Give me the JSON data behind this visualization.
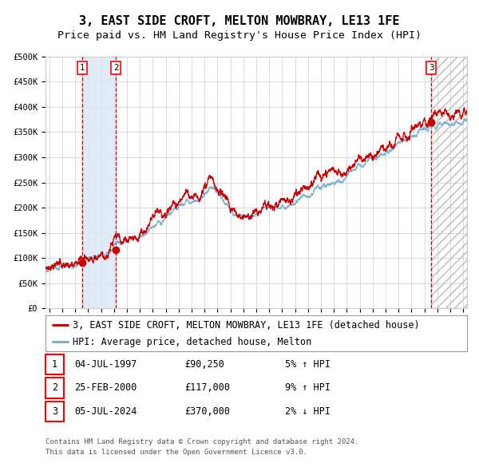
{
  "title": "3, EAST SIDE CROFT, MELTON MOWBRAY, LE13 1FE",
  "subtitle": "Price paid vs. HM Land Registry's House Price Index (HPI)",
  "legend_line1": "3, EAST SIDE CROFT, MELTON MOWBRAY, LE13 1FE (detached house)",
  "legend_line2": "HPI: Average price, detached house, Melton",
  "footer1": "Contains HM Land Registry data © Crown copyright and database right 2024.",
  "footer2": "This data is licensed under the Open Government Licence v3.0.",
  "transactions": [
    {
      "num": 1,
      "date": "04-JUL-1997",
      "price": "90,250",
      "price_raw": 90250,
      "pct": "5%",
      "dir": "↑",
      "year": 1997.54
    },
    {
      "num": 2,
      "date": "25-FEB-2000",
      "price": "117,000",
      "price_raw": 117000,
      "pct": "9%",
      "dir": "↑",
      "year": 2000.15
    },
    {
      "num": 3,
      "date": "05-JUL-2024",
      "price": "370,000",
      "price_raw": 370000,
      "pct": "2%",
      "dir": "↓",
      "year": 2024.54
    }
  ],
  "ylim": [
    0,
    500000
  ],
  "yticks": [
    0,
    50000,
    100000,
    150000,
    200000,
    250000,
    300000,
    350000,
    400000,
    450000,
    500000
  ],
  "ytick_labels": [
    "£0",
    "£50K",
    "£100K",
    "£150K",
    "£200K",
    "£250K",
    "£300K",
    "£350K",
    "£400K",
    "£450K",
    "£500K"
  ],
  "xlim_start": 1994.7,
  "xlim_end": 2027.3,
  "xticks": [
    1995,
    1996,
    1997,
    1998,
    1999,
    2000,
    2001,
    2002,
    2003,
    2004,
    2005,
    2006,
    2007,
    2008,
    2009,
    2010,
    2011,
    2012,
    2013,
    2014,
    2015,
    2016,
    2017,
    2018,
    2019,
    2020,
    2021,
    2022,
    2023,
    2024,
    2025,
    2026,
    2027
  ],
  "hpi_color": "#7bafd4",
  "price_color": "#cc0000",
  "dot_color": "#cc0000",
  "vline_color": "#cc0000",
  "shading_color": "#dce8f5",
  "hatch_color": "#bbbbbb",
  "background_color": "#ffffff",
  "grid_color": "#cccccc",
  "title_fontsize": 11,
  "subtitle_fontsize": 9.5,
  "tick_fontsize": 7.5,
  "legend_fontsize": 8.5,
  "table_fontsize": 8.5,
  "footer_fontsize": 6.5
}
